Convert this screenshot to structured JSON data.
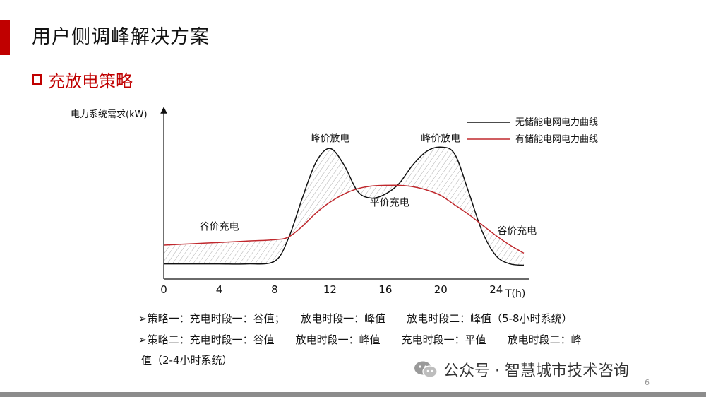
{
  "header": {
    "title": "用户侧调峰解决方案"
  },
  "section": {
    "label": "充放电策略"
  },
  "chart_data": {
    "type": "line",
    "ylabel": "电力系统需求(kW)",
    "xlabel": "T(h)",
    "x_ticks": [
      "0",
      "4",
      "8",
      "12",
      "16",
      "20",
      "24"
    ],
    "xlim": [
      0,
      26
    ],
    "legend": [
      {
        "name": "无储能电网电力曲线",
        "color": "#111111"
      },
      {
        "name": "有储能电网电力曲线",
        "color": "#c0282d"
      }
    ],
    "annotations": [
      {
        "text": "峰价放电",
        "x": 12,
        "y": 0.93
      },
      {
        "text": "峰价放电",
        "x": 20,
        "y": 0.93
      },
      {
        "text": "平价充电",
        "x": 16.3,
        "y": 0.45
      },
      {
        "text": "谷价充电",
        "x": 4,
        "y": 0.27
      },
      {
        "text": "谷价充电",
        "x": 25.5,
        "y": 0.24
      }
    ],
    "series": [
      {
        "name": "无储能电网电力曲线",
        "x": [
          0,
          2,
          4,
          6,
          8,
          9,
          10,
          11,
          12,
          13,
          14,
          15,
          16,
          17,
          18,
          19,
          20,
          21,
          22,
          23,
          24,
          25,
          26
        ],
        "y": [
          0.06,
          0.06,
          0.06,
          0.06,
          0.08,
          0.25,
          0.55,
          0.82,
          0.92,
          0.8,
          0.6,
          0.55,
          0.58,
          0.66,
          0.8,
          0.9,
          0.93,
          0.88,
          0.6,
          0.3,
          0.12,
          0.06,
          0.05
        ]
      },
      {
        "name": "有储能电网电力曲线",
        "x": [
          0,
          2,
          4,
          6,
          8,
          9,
          10,
          11,
          12,
          13,
          14,
          15,
          16,
          17,
          18,
          19,
          20,
          21,
          22,
          23,
          24,
          25,
          26
        ],
        "y": [
          0.2,
          0.21,
          0.22,
          0.23,
          0.24,
          0.26,
          0.34,
          0.44,
          0.52,
          0.58,
          0.62,
          0.64,
          0.645,
          0.645,
          0.635,
          0.61,
          0.57,
          0.5,
          0.43,
          0.35,
          0.27,
          0.2,
          0.14
        ]
      }
    ]
  },
  "strategies": {
    "s1": "➢策略一：充电时段一：谷值；　　放电时段一：峰值　　放电时段二：峰值（5-8小时系统）",
    "s2": "➢策略二：充电时段一：谷值　　放电时段一：峰值　　充电时段一：平值　　放电时段二：峰",
    "s3": "值（2-4小时系统）"
  },
  "watermark": {
    "text": "公众号 · 智慧城市技术咨询"
  },
  "footer": {
    "page": "6"
  },
  "colors": {
    "accent": "#c00000",
    "footer": "#8c8c8c"
  }
}
